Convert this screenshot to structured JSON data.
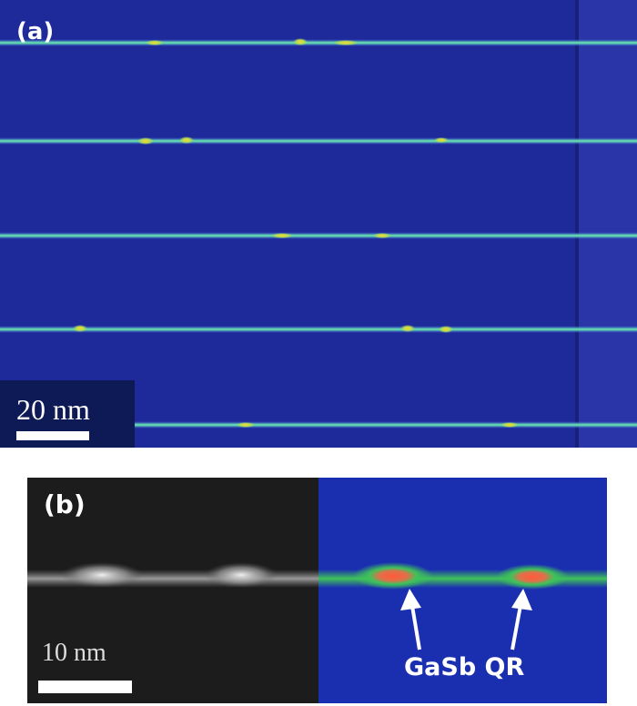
{
  "panel_a": {
    "label": "(a)",
    "scale_bar": "20 nm",
    "colors": {
      "background": "#1f2a9a",
      "line": "#39c6a8",
      "hotspot": "#f5d24a"
    }
  },
  "panel_b": {
    "label": "(b)",
    "scale_bar": "10 nm",
    "annotation": "GaSb QR",
    "colors": {
      "grayscale_bg": "#1a1a1a",
      "color_bg": "#1a2fb0",
      "line": "#3fc25a",
      "hotspot": "#ff6a3a"
    }
  }
}
